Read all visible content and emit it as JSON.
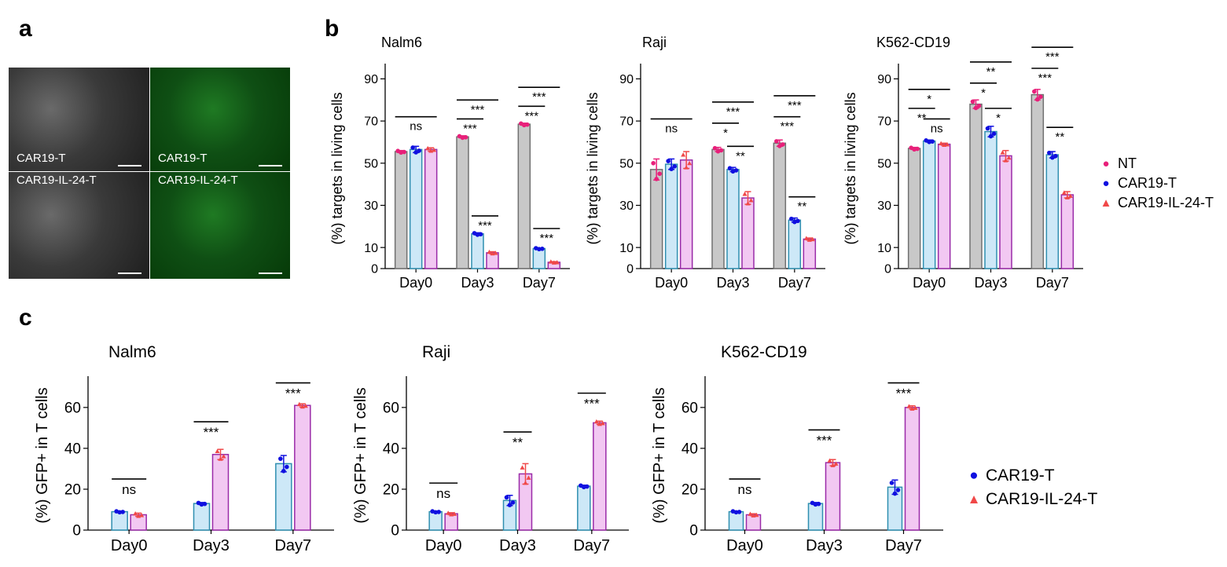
{
  "panels": {
    "a": "a",
    "b": "b",
    "c": "c"
  },
  "micrographs": [
    {
      "label": "CAR19-T",
      "style": "gray"
    },
    {
      "label": "CAR19-T",
      "style": "green"
    },
    {
      "label": "CAR19-IL-24-T",
      "style": "gray"
    },
    {
      "label": "CAR19-IL-24-T",
      "style": "green"
    }
  ],
  "colors": {
    "NT_bar": "#c8c8c8",
    "NT_edge": "#707070",
    "NT_point": "#e8207a",
    "CAR_bar": "#cde8f7",
    "CAR_edge": "#2f8fb0",
    "CAR_point": "#1010e0",
    "IL24_bar": "#f2c8f2",
    "IL24_edge": "#9a2aa8",
    "IL24_point": "#f04848"
  },
  "legend_b": [
    {
      "name": "NT",
      "symbol": "●",
      "color": "#e8207a"
    },
    {
      "name": "CAR19-T",
      "symbol": "●",
      "color": "#1010e0"
    },
    {
      "name": "CAR19-IL-24-T",
      "symbol": "▲",
      "color": "#f04848"
    }
  ],
  "legend_c": [
    {
      "name": "CAR19-T",
      "symbol": "●",
      "color": "#1010e0"
    },
    {
      "name": "CAR19-IL-24-T",
      "symbol": "▲",
      "color": "#f04848"
    }
  ],
  "chart_data": [
    {
      "type": "bar",
      "panel": "b",
      "title": "Nalm6",
      "ylabel": "(%) targets in living cells",
      "ylim": [
        0,
        95
      ],
      "yticks": [
        0,
        10,
        30,
        50,
        70,
        90
      ],
      "categories": [
        "Day0",
        "Day3",
        "Day7"
      ],
      "series": [
        {
          "name": "NT",
          "values": [
            55.5,
            62.5,
            68.5
          ],
          "err": [
            0.5,
            0.5,
            0.5
          ]
        },
        {
          "name": "CAR19-T",
          "values": [
            56.5,
            16.5,
            9.5
          ],
          "err": [
            1.5,
            0.5,
            0.3
          ]
        },
        {
          "name": "CAR19-IL-24-T",
          "values": [
            56.5,
            7.5,
            3.0
          ],
          "err": [
            0.8,
            0.5,
            0.3
          ]
        }
      ],
      "sig": [
        {
          "bar1": [
            0,
            0
          ],
          "bar2": [
            0,
            2
          ],
          "y": 72,
          "text": "ns"
        },
        {
          "bar1": [
            1,
            0
          ],
          "bar2": [
            1,
            1
          ],
          "y": 71,
          "text": "***"
        },
        {
          "bar1": [
            1,
            0
          ],
          "bar2": [
            1,
            2
          ],
          "y": 80,
          "text": "***"
        },
        {
          "bar1": [
            1,
            1
          ],
          "bar2": [
            1,
            2
          ],
          "y": 25,
          "text": "***"
        },
        {
          "bar1": [
            2,
            0
          ],
          "bar2": [
            2,
            1
          ],
          "y": 77,
          "text": "***"
        },
        {
          "bar1": [
            2,
            0
          ],
          "bar2": [
            2,
            2
          ],
          "y": 86,
          "text": "***"
        },
        {
          "bar1": [
            2,
            1
          ],
          "bar2": [
            2,
            2
          ],
          "y": 19,
          "text": "***"
        }
      ]
    },
    {
      "type": "bar",
      "panel": "b",
      "title": "Raji",
      "ylabel": "(%) targets in living cells",
      "ylim": [
        0,
        95
      ],
      "yticks": [
        0,
        10,
        30,
        50,
        70,
        90
      ],
      "categories": [
        "Day0",
        "Day3",
        "Day7"
      ],
      "series": [
        {
          "name": "NT",
          "values": [
            47,
            56.5,
            59.5
          ],
          "err": [
            5,
            1,
            1.5
          ]
        },
        {
          "name": "CAR19-T",
          "values": [
            49.5,
            47,
            23
          ],
          "err": [
            2.5,
            1,
            1
          ]
        },
        {
          "name": "CAR19-IL-24-T",
          "values": [
            51.5,
            33.5,
            14
          ],
          "err": [
            4,
            3,
            0.5
          ]
        }
      ],
      "sig": [
        {
          "bar1": [
            0,
            0
          ],
          "bar2": [
            0,
            2
          ],
          "y": 71,
          "text": "ns"
        },
        {
          "bar1": [
            1,
            0
          ],
          "bar2": [
            1,
            1
          ],
          "y": 69,
          "text": "*"
        },
        {
          "bar1": [
            1,
            0
          ],
          "bar2": [
            1,
            2
          ],
          "y": 79,
          "text": "***"
        },
        {
          "bar1": [
            1,
            1
          ],
          "bar2": [
            1,
            2
          ],
          "y": 58,
          "text": "**"
        },
        {
          "bar1": [
            2,
            0
          ],
          "bar2": [
            2,
            1
          ],
          "y": 72,
          "text": "***"
        },
        {
          "bar1": [
            2,
            0
          ],
          "bar2": [
            2,
            2
          ],
          "y": 82,
          "text": "***"
        },
        {
          "bar1": [
            2,
            1
          ],
          "bar2": [
            2,
            2
          ],
          "y": 34,
          "text": "**"
        }
      ]
    },
    {
      "type": "bar",
      "panel": "b",
      "title": "K562-CD19",
      "ylabel": "(%) targets in living cells",
      "ylim": [
        0,
        95
      ],
      "yticks": [
        0,
        10,
        30,
        50,
        70,
        90
      ],
      "categories": [
        "Day0",
        "Day3",
        "Day7"
      ],
      "series": [
        {
          "name": "NT",
          "values": [
            57,
            78,
            82.5
          ],
          "err": [
            0.5,
            2,
            2.5
          ]
        },
        {
          "name": "CAR19-T",
          "values": [
            60.5,
            65,
            54
          ],
          "err": [
            0.5,
            2.5,
            1.5
          ]
        },
        {
          "name": "CAR19-IL-24-T",
          "values": [
            59,
            53.5,
            35
          ],
          "err": [
            0.5,
            2.5,
            1.5
          ]
        }
      ],
      "sig": [
        {
          "bar1": [
            0,
            0
          ],
          "bar2": [
            0,
            1
          ],
          "y": 76,
          "text": "**"
        },
        {
          "bar1": [
            0,
            0
          ],
          "bar2": [
            0,
            2
          ],
          "y": 85,
          "text": "*"
        },
        {
          "bar1": [
            0,
            1
          ],
          "bar2": [
            0,
            2
          ],
          "y": 71,
          "text": "ns"
        },
        {
          "bar1": [
            1,
            0
          ],
          "bar2": [
            1,
            1
          ],
          "y": 88,
          "text": "*"
        },
        {
          "bar1": [
            1,
            0
          ],
          "bar2": [
            1,
            2
          ],
          "y": 98,
          "text": "**"
        },
        {
          "bar1": [
            1,
            1
          ],
          "bar2": [
            1,
            2
          ],
          "y": 76,
          "text": "*"
        },
        {
          "bar1": [
            2,
            0
          ],
          "bar2": [
            2,
            1
          ],
          "y": 95,
          "text": "***"
        },
        {
          "bar1": [
            2,
            0
          ],
          "bar2": [
            2,
            2
          ],
          "y": 105,
          "text": "***"
        },
        {
          "bar1": [
            2,
            1
          ],
          "bar2": [
            2,
            2
          ],
          "y": 67,
          "text": "**"
        }
      ]
    },
    {
      "type": "bar",
      "panel": "c",
      "title": "Nalm6",
      "ylabel": "(%) GFP+ in T cells",
      "ylim": [
        0,
        73
      ],
      "yticks": [
        0,
        20,
        40,
        60
      ],
      "categories": [
        "Day0",
        "Day3",
        "Day7"
      ],
      "series": [
        {
          "name": "CAR19-T",
          "values": [
            9,
            13,
            32.5
          ],
          "err": [
            0.3,
            0.5,
            4
          ]
        },
        {
          "name": "CAR19-IL-24-T",
          "values": [
            7.5,
            37,
            61
          ],
          "err": [
            0.8,
            2.5,
            0.8
          ]
        }
      ],
      "sig": [
        {
          "bar1": [
            0,
            0
          ],
          "bar2": [
            0,
            1
          ],
          "y": 25,
          "text": "ns"
        },
        {
          "bar1": [
            1,
            0
          ],
          "bar2": [
            1,
            1
          ],
          "y": 53,
          "text": "***"
        },
        {
          "bar1": [
            2,
            0
          ],
          "bar2": [
            2,
            1
          ],
          "y": 72,
          "text": "***"
        }
      ]
    },
    {
      "type": "bar",
      "panel": "c",
      "title": "Raji",
      "ylabel": "(%) GFP+ in T cells",
      "ylim": [
        0,
        73
      ],
      "yticks": [
        0,
        20,
        40,
        60
      ],
      "categories": [
        "Day0",
        "Day3",
        "Day7"
      ],
      "series": [
        {
          "name": "CAR19-T",
          "values": [
            9,
            14.5,
            21.5
          ],
          "err": [
            0.3,
            2.5,
            0.5
          ]
        },
        {
          "name": "CAR19-IL-24-T",
          "values": [
            8,
            27.5,
            52.5
          ],
          "err": [
            0.5,
            5,
            0.8
          ]
        }
      ],
      "sig": [
        {
          "bar1": [
            0,
            0
          ],
          "bar2": [
            0,
            1
          ],
          "y": 23,
          "text": "ns"
        },
        {
          "bar1": [
            1,
            0
          ],
          "bar2": [
            1,
            1
          ],
          "y": 48,
          "text": "**"
        },
        {
          "bar1": [
            2,
            0
          ],
          "bar2": [
            2,
            1
          ],
          "y": 67,
          "text": "***"
        }
      ]
    },
    {
      "type": "bar",
      "panel": "c",
      "title": "K562-CD19",
      "ylabel": "(%) GFP+ in T cells",
      "ylim": [
        0,
        73
      ],
      "yticks": [
        0,
        20,
        40,
        60
      ],
      "categories": [
        "Day0",
        "Day3",
        "Day7"
      ],
      "series": [
        {
          "name": "CAR19-T",
          "values": [
            9,
            13,
            21
          ],
          "err": [
            0.3,
            0.5,
            3.5
          ]
        },
        {
          "name": "CAR19-IL-24-T",
          "values": [
            7.5,
            33,
            60
          ],
          "err": [
            0.5,
            1.5,
            0.8
          ]
        }
      ],
      "sig": [
        {
          "bar1": [
            0,
            0
          ],
          "bar2": [
            0,
            1
          ],
          "y": 25,
          "text": "ns"
        },
        {
          "bar1": [
            1,
            0
          ],
          "bar2": [
            1,
            1
          ],
          "y": 49,
          "text": "***"
        },
        {
          "bar1": [
            2,
            0
          ],
          "bar2": [
            2,
            1
          ],
          "y": 72,
          "text": "***"
        }
      ]
    }
  ]
}
